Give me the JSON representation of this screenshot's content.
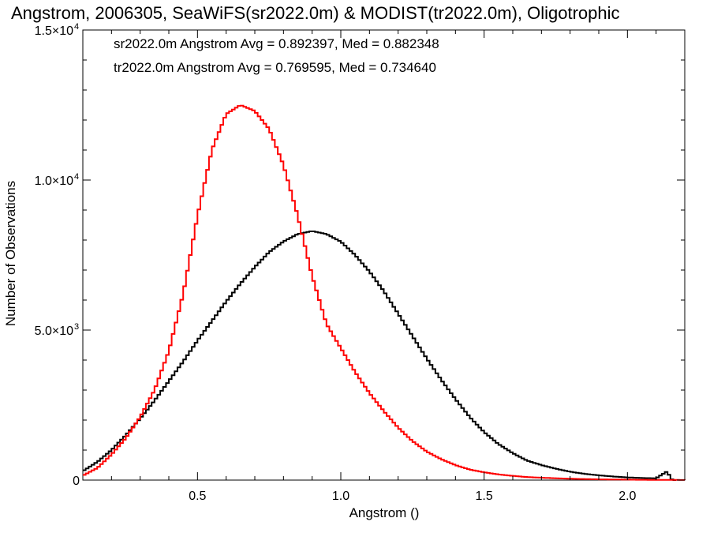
{
  "chart_data": {
    "type": "histogram",
    "title": "Angstrom, 2006305, SeaWiFS(sr2022.0m) & MODIST(tr2022.0m), Oligotrophic",
    "xlabel": "Angstrom ()",
    "ylabel": "Number of Observations",
    "xlim": [
      0.1,
      2.2
    ],
    "ylim": [
      0,
      15000
    ],
    "x_ticks": [
      {
        "value": 0.5,
        "label": "0.5"
      },
      {
        "value": 1.0,
        "label": "1.0"
      },
      {
        "value": 1.5,
        "label": "1.5"
      },
      {
        "value": 2.0,
        "label": "2.0"
      }
    ],
    "y_ticks": [
      {
        "value": 0,
        "label": "0",
        "exp": ""
      },
      {
        "value": 5000,
        "label": "5.0×10",
        "exp": "3"
      },
      {
        "value": 10000,
        "label": "1.0×10",
        "exp": "4"
      },
      {
        "value": 15000,
        "label": "1.5×10",
        "exp": "4"
      }
    ],
    "annotations": [
      {
        "text": "sr2022.0m Angstrom Avg = 0.892397, Med = 0.882348",
        "color": "#000000"
      },
      {
        "text": "tr2022.0m Angstrom Avg = 0.769595, Med = 0.734640",
        "color": "#ff0000"
      }
    ],
    "series": [
      {
        "color": "#000000",
        "x": [
          0.1,
          0.15,
          0.2,
          0.25,
          0.3,
          0.35,
          0.4,
          0.45,
          0.5,
          0.55,
          0.6,
          0.65,
          0.7,
          0.75,
          0.8,
          0.85,
          0.9,
          0.95,
          1.0,
          1.05,
          1.1,
          1.15,
          1.2,
          1.25,
          1.3,
          1.35,
          1.4,
          1.45,
          1.5,
          1.55,
          1.6,
          1.65,
          1.7,
          1.75,
          1.8,
          1.85,
          1.9,
          1.95,
          2.0,
          2.05,
          2.1,
          2.14,
          2.15,
          2.16
        ],
        "y": [
          300,
          600,
          1000,
          1500,
          2050,
          2650,
          3300,
          3950,
          4650,
          5300,
          5950,
          6550,
          7100,
          7600,
          7950,
          8200,
          8300,
          8200,
          7950,
          7500,
          6950,
          6300,
          5550,
          4800,
          4050,
          3350,
          2700,
          2100,
          1600,
          1200,
          900,
          650,
          500,
          380,
          280,
          210,
          160,
          120,
          90,
          70,
          60,
          300,
          50,
          0
        ]
      },
      {
        "color": "#ff0000",
        "x": [
          0.1,
          0.15,
          0.2,
          0.25,
          0.3,
          0.35,
          0.4,
          0.45,
          0.5,
          0.55,
          0.6,
          0.65,
          0.7,
          0.75,
          0.8,
          0.85,
          0.9,
          0.95,
          1.0,
          1.05,
          1.1,
          1.15,
          1.2,
          1.25,
          1.3,
          1.35,
          1.4,
          1.45,
          1.5,
          1.55,
          1.6,
          1.65,
          1.7,
          1.75,
          1.8,
          1.85,
          1.9,
          1.95,
          2.0,
          2.05,
          2.1,
          2.15,
          2.2
        ],
        "y": [
          150,
          400,
          850,
          1400,
          2100,
          3000,
          4300,
          6200,
          8800,
          11000,
          12200,
          12500,
          12300,
          11700,
          10500,
          8800,
          6800,
          5200,
          4400,
          3600,
          2900,
          2300,
          1750,
          1300,
          950,
          700,
          500,
          350,
          260,
          190,
          140,
          100,
          80,
          60,
          45,
          35,
          25,
          20,
          15,
          10,
          8,
          5,
          3
        ]
      }
    ]
  }
}
